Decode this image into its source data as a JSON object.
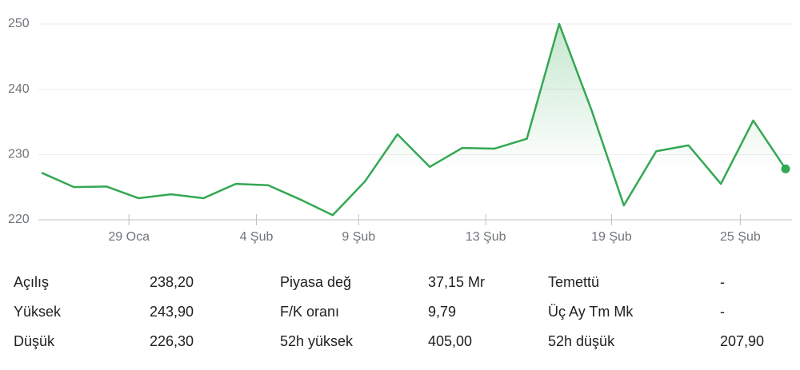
{
  "chart_data": {
    "type": "line",
    "color": "#34a853",
    "values": [
      227.2,
      225.0,
      225.1,
      223.3,
      223.9,
      223.3,
      225.5,
      225.3,
      223.1,
      220.7,
      225.9,
      233.1,
      228.1,
      231.0,
      230.9,
      232.4,
      250.0,
      236.8,
      222.2,
      230.5,
      231.4,
      225.5,
      235.2,
      227.8
    ],
    "xlim": [
      0,
      23
    ],
    "xticks": [
      {
        "value": 2.7,
        "label": "29 Oca"
      },
      {
        "value": 6.64,
        "label": "4 Şub"
      },
      {
        "value": 9.8,
        "label": "9 Şub"
      },
      {
        "value": 13.73,
        "label": "13 Şub"
      },
      {
        "value": 17.62,
        "label": "19 Şub"
      },
      {
        "value": 21.6,
        "label": "25 Şub"
      }
    ],
    "ylim": [
      220,
      250
    ],
    "yticks": [
      220,
      230,
      240,
      250
    ],
    "grid": true
  },
  "stats": {
    "rows": [
      [
        [
          "Açılış",
          "238,20"
        ],
        [
          "Piyasa değ",
          "37,15 Mr"
        ],
        [
          "Temettü",
          "-"
        ]
      ],
      [
        [
          "Yüksek",
          "243,90"
        ],
        [
          "F/K oranı",
          "9,79"
        ],
        [
          "Üç Ay Tm Mk",
          "-"
        ]
      ],
      [
        [
          "Düşük",
          "226,30"
        ],
        [
          "52h yüksek",
          "405,00"
        ],
        [
          "52h düşük",
          "207,90"
        ]
      ]
    ]
  }
}
